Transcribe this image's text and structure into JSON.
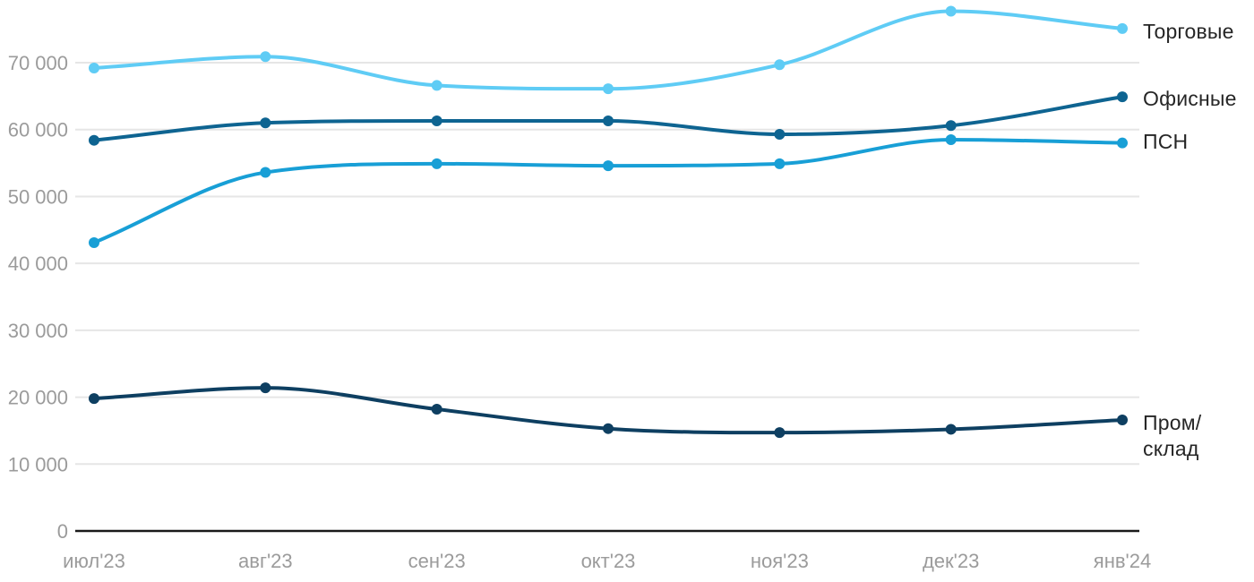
{
  "chart_data": {
    "type": "line",
    "categories": [
      "июл'23",
      "авг'23",
      "сен'23",
      "окт'23",
      "ноя'23",
      "дек'23",
      "янв'24"
    ],
    "series": [
      {
        "name": "Торговые",
        "legend_label": "Торговые",
        "color": "#5FCCF5",
        "values": [
          69200,
          70900,
          66600,
          66100,
          69700,
          77700,
          75100
        ]
      },
      {
        "name": "Офисные",
        "legend_label": "Офисные",
        "color": "#0E6491",
        "values": [
          58400,
          61000,
          61300,
          61300,
          59300,
          60600,
          64900
        ]
      },
      {
        "name": "ПСН",
        "legend_label": "ПСН",
        "color": "#189FD6",
        "values": [
          43100,
          53600,
          54900,
          54600,
          54900,
          58500,
          58000
        ]
      },
      {
        "name": "Пром/склад",
        "legend_label": "Пром/\nсклад",
        "color": "#0E3F61",
        "values": [
          19800,
          21400,
          18200,
          15300,
          14700,
          15200,
          16600
        ]
      }
    ],
    "y_ticks": [
      0,
      10000,
      20000,
      30000,
      40000,
      50000,
      60000,
      70000
    ],
    "ylim": [
      0,
      79000
    ],
    "grid": "horizontal",
    "legend_position": "right-of-line-ends",
    "curve": "smooth-monotone"
  },
  "colors": {
    "background": "#FFFFFF",
    "grid_line": "#E6E6E6",
    "axis_line": "#1A1A1A",
    "tick_label": "#9B9B9B",
    "legend_text": "#262626"
  }
}
